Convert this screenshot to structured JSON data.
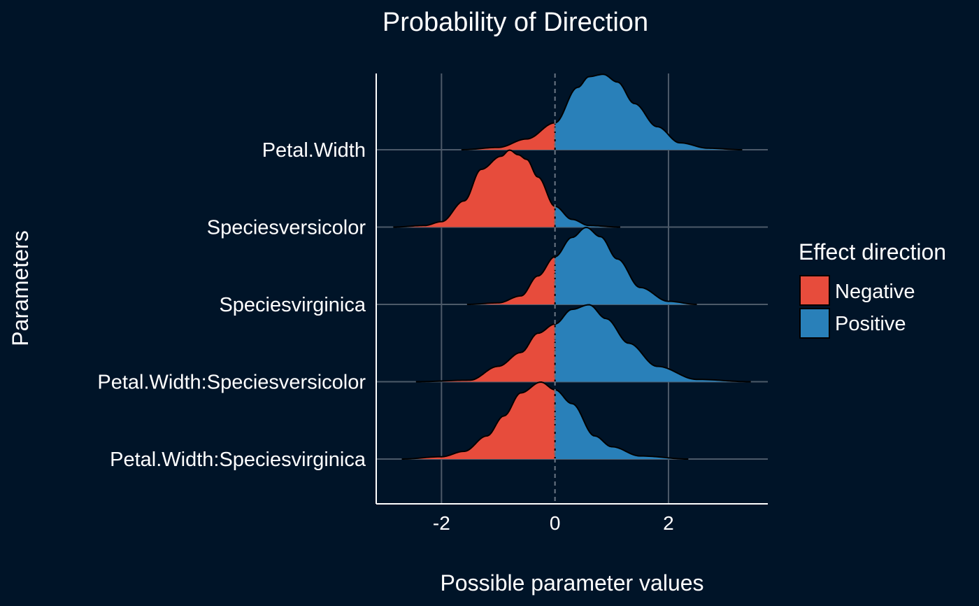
{
  "chart_data": {
    "type": "area",
    "title": "Probability of Direction",
    "xlabel": "Possible parameter values",
    "ylabel": "Parameters",
    "xlim": [
      -3.15,
      3.75
    ],
    "x_ticks": [
      -2,
      0,
      2
    ],
    "x_tick_labels": [
      "-2",
      "0",
      "2"
    ],
    "grid": true,
    "reference_line_x": 0,
    "legend": {
      "title": "Effect direction",
      "position": "right",
      "entries": [
        {
          "label": "Negative",
          "color": "#e74c3c"
        },
        {
          "label": "Positive",
          "color": "#2980b9"
        }
      ]
    },
    "categories": [
      "Petal.Width",
      "Speciesversicolor",
      "Speciesvirginica",
      "Petal.Width:Speciesversicolor",
      "Petal.Width:Speciesvirginica"
    ],
    "series": [
      {
        "category": "Petal.Width",
        "x": [
          -1.65,
          -1.0,
          -0.5,
          0.0,
          0.4,
          0.6,
          0.85,
          1.1,
          1.4,
          1.8,
          2.2,
          2.7,
          3.3
        ],
        "density": [
          0.0,
          0.03,
          0.14,
          0.35,
          0.81,
          0.95,
          0.98,
          0.88,
          0.6,
          0.3,
          0.09,
          0.02,
          0.0
        ]
      },
      {
        "category": "Speciesversicolor",
        "x": [
          -2.85,
          -2.3,
          -2.0,
          -1.6,
          -1.3,
          -0.95,
          -0.8,
          -0.65,
          -0.5,
          -0.3,
          0.0,
          0.3,
          0.6,
          1.15
        ],
        "density": [
          0.0,
          0.02,
          0.07,
          0.34,
          0.75,
          0.92,
          1.0,
          0.94,
          0.88,
          0.65,
          0.27,
          0.1,
          0.02,
          0.0
        ]
      },
      {
        "category": "Speciesvirginica",
        "x": [
          -1.55,
          -1.0,
          -0.6,
          -0.3,
          0.0,
          0.3,
          0.55,
          0.8,
          1.1,
          1.5,
          2.0,
          2.5
        ],
        "density": [
          0.0,
          0.02,
          0.11,
          0.37,
          0.62,
          0.87,
          1.0,
          0.88,
          0.59,
          0.22,
          0.04,
          0.0
        ]
      },
      {
        "category": "Petal.Width:Speciesversicolor",
        "x": [
          -2.45,
          -1.5,
          -1.0,
          -0.6,
          -0.3,
          0.0,
          0.3,
          0.6,
          0.9,
          1.3,
          1.8,
          2.5,
          3.45
        ],
        "density": [
          0.0,
          0.02,
          0.2,
          0.38,
          0.63,
          0.75,
          0.94,
          1.0,
          0.82,
          0.5,
          0.2,
          0.03,
          0.0
        ]
      },
      {
        "category": "Petal.Width:Speciesvirginica",
        "x": [
          -2.7,
          -2.0,
          -1.6,
          -1.2,
          -0.9,
          -0.6,
          -0.25,
          0.0,
          0.3,
          0.7,
          1.0,
          1.5,
          2.35
        ],
        "density": [
          0.0,
          0.03,
          0.1,
          0.3,
          0.56,
          0.86,
          1.0,
          0.9,
          0.72,
          0.3,
          0.16,
          0.04,
          0.0
        ]
      }
    ]
  }
}
